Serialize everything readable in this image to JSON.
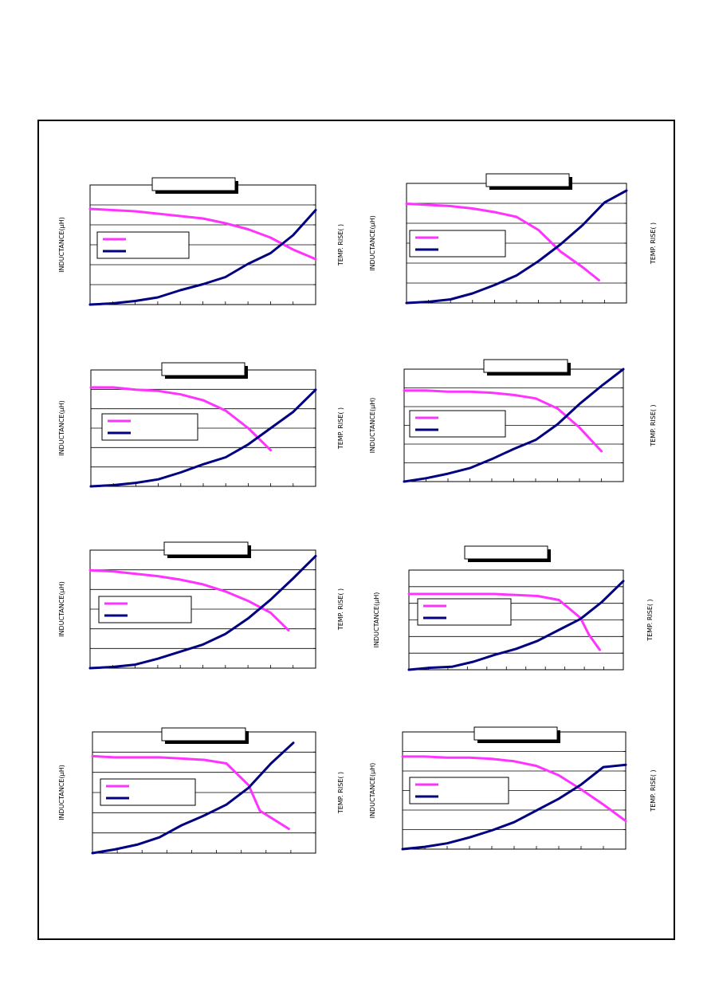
{
  "colors": {
    "inductance": "#ff33ff",
    "temp_rise": "#000080",
    "frame": "#000000",
    "grid": "#000000"
  },
  "chart_data": [
    {
      "type": "line",
      "ylabel": "INDUCTANCE(μH)",
      "y2label": "TEMP. RISE(   )",
      "title": "",
      "grid": true,
      "legend": "left",
      "x_ticks": 10,
      "y_gridlines": 6,
      "series": [
        {
          "key": "inductance",
          "values": [
            [
              0,
              0.8
            ],
            [
              1,
              0.79
            ],
            [
              2,
              0.78
            ],
            [
              3,
              0.76
            ],
            [
              4,
              0.74
            ],
            [
              5,
              0.72
            ],
            [
              6,
              0.68
            ],
            [
              7,
              0.63
            ],
            [
              8,
              0.56
            ],
            [
              9,
              0.46
            ],
            [
              10,
              0.38
            ]
          ]
        },
        {
          "key": "temp_rise",
          "values": [
            [
              0,
              0.0
            ],
            [
              1,
              0.01
            ],
            [
              2,
              0.03
            ],
            [
              3,
              0.06
            ],
            [
              4,
              0.12
            ],
            [
              5,
              0.17
            ],
            [
              6,
              0.23
            ],
            [
              7,
              0.34
            ],
            [
              8,
              0.43
            ],
            [
              9,
              0.58
            ],
            [
              10,
              0.79
            ]
          ]
        }
      ]
    },
    {
      "type": "line",
      "ylabel": "INDUCTANCE(μH)",
      "y2label": "TEMP. RISE(   )",
      "title": "",
      "grid": true,
      "legend": "left",
      "x_ticks": 10,
      "y_gridlines": 6,
      "series": [
        {
          "key": "inductance",
          "values": [
            [
              0,
              0.83
            ],
            [
              1,
              0.82
            ],
            [
              2,
              0.81
            ],
            [
              3,
              0.79
            ],
            [
              4,
              0.76
            ],
            [
              5,
              0.72
            ],
            [
              6,
              0.61
            ],
            [
              7,
              0.43
            ],
            [
              8,
              0.3
            ],
            [
              8.75,
              0.19
            ]
          ]
        },
        {
          "key": "temp_rise",
          "values": [
            [
              0,
              0.0
            ],
            [
              1,
              0.01
            ],
            [
              2,
              0.03
            ],
            [
              3,
              0.08
            ],
            [
              4,
              0.15
            ],
            [
              5,
              0.23
            ],
            [
              6,
              0.35
            ],
            [
              7,
              0.49
            ],
            [
              8,
              0.65
            ],
            [
              9,
              0.84
            ],
            [
              10,
              0.94
            ]
          ]
        }
      ]
    },
    {
      "type": "line",
      "ylabel": "INDUCTANCE(μH)",
      "y2label": "TEMP. RISE(   )",
      "title": "",
      "grid": true,
      "legend": "left",
      "x_ticks": 10,
      "y_gridlines": 6,
      "series": [
        {
          "key": "inductance",
          "values": [
            [
              0,
              0.85
            ],
            [
              1,
              0.85
            ],
            [
              2,
              0.83
            ],
            [
              3,
              0.82
            ],
            [
              4,
              0.79
            ],
            [
              5,
              0.74
            ],
            [
              6,
              0.65
            ],
            [
              7,
              0.5
            ],
            [
              8,
              0.31
            ]
          ]
        },
        {
          "key": "temp_rise",
          "values": [
            [
              0,
              0.0
            ],
            [
              1,
              0.01
            ],
            [
              2,
              0.03
            ],
            [
              3,
              0.06
            ],
            [
              4,
              0.12
            ],
            [
              5,
              0.19
            ],
            [
              6,
              0.25
            ],
            [
              7,
              0.36
            ],
            [
              8,
              0.5
            ],
            [
              9,
              0.64
            ],
            [
              10,
              0.83
            ]
          ]
        }
      ]
    },
    {
      "type": "line",
      "ylabel": "INDUCTANCE(μH)",
      "y2label": "TEMP. RISE(   )",
      "title": "",
      "grid": true,
      "legend": "left",
      "x_ticks": 10,
      "y_gridlines": 6,
      "series": [
        {
          "key": "inductance",
          "values": [
            [
              0,
              0.81
            ],
            [
              1,
              0.81
            ],
            [
              2,
              0.8
            ],
            [
              3,
              0.8
            ],
            [
              4,
              0.79
            ],
            [
              5,
              0.77
            ],
            [
              6,
              0.74
            ],
            [
              7,
              0.65
            ],
            [
              8,
              0.48
            ],
            [
              9,
              0.27
            ]
          ]
        },
        {
          "key": "temp_rise",
          "values": [
            [
              0,
              0.0
            ],
            [
              1,
              0.03
            ],
            [
              2,
              0.07
            ],
            [
              3,
              0.12
            ],
            [
              4,
              0.2
            ],
            [
              5,
              0.29
            ],
            [
              6,
              0.37
            ],
            [
              7,
              0.51
            ],
            [
              8,
              0.69
            ],
            [
              9,
              0.85
            ],
            [
              10,
              1.0
            ]
          ]
        }
      ]
    },
    {
      "type": "line",
      "ylabel": "INDUCTANCE(μH)",
      "y2label": "TEMP. RISE(   )",
      "title": "",
      "grid": true,
      "legend": "left",
      "x_ticks": 10,
      "y_gridlines": 6,
      "series": [
        {
          "key": "inductance",
          "values": [
            [
              0,
              0.83
            ],
            [
              1,
              0.82
            ],
            [
              2,
              0.8
            ],
            [
              3,
              0.78
            ],
            [
              4,
              0.75
            ],
            [
              5,
              0.71
            ],
            [
              6,
              0.65
            ],
            [
              7,
              0.57
            ],
            [
              8,
              0.47
            ],
            [
              8.8,
              0.32
            ]
          ]
        },
        {
          "key": "temp_rise",
          "values": [
            [
              0,
              0.0
            ],
            [
              1,
              0.01
            ],
            [
              2,
              0.03
            ],
            [
              3,
              0.08
            ],
            [
              4,
              0.14
            ],
            [
              5,
              0.2
            ],
            [
              6,
              0.29
            ],
            [
              7,
              0.42
            ],
            [
              8,
              0.58
            ],
            [
              9,
              0.76
            ],
            [
              10,
              0.95
            ]
          ]
        }
      ]
    },
    {
      "type": "line",
      "ylabel": "INDUCTANCE(μH)",
      "y2label": "TEMP. RISE(   )",
      "title": "",
      "grid": true,
      "legend": "left",
      "x_ticks": 11,
      "y_gridlines": 6,
      "series": [
        {
          "key": "inductance",
          "values": [
            [
              0,
              0.76
            ],
            [
              1,
              0.76
            ],
            [
              2,
              0.76
            ],
            [
              3,
              0.76
            ],
            [
              4,
              0.76
            ],
            [
              5,
              0.75
            ],
            [
              6,
              0.74
            ],
            [
              7,
              0.7
            ],
            [
              8,
              0.52
            ],
            [
              8.4,
              0.35
            ],
            [
              8.9,
              0.2
            ]
          ]
        },
        {
          "key": "temp_rise",
          "values": [
            [
              0,
              0.0
            ],
            [
              1,
              0.02
            ],
            [
              2,
              0.03
            ],
            [
              3,
              0.08
            ],
            [
              4,
              0.15
            ],
            [
              5,
              0.21
            ],
            [
              6,
              0.29
            ],
            [
              7,
              0.4
            ],
            [
              8,
              0.51
            ],
            [
              9,
              0.68
            ],
            [
              10,
              0.89
            ]
          ]
        }
      ]
    },
    {
      "type": "line",
      "ylabel": "INDUCTANCE(μH)",
      "y2label": "TEMP. RISE(   )",
      "title": "",
      "grid": true,
      "legend": "left",
      "x_ticks": 9,
      "y_gridlines": 6,
      "series": [
        {
          "key": "inductance",
          "values": [
            [
              0,
              0.8
            ],
            [
              1,
              0.79
            ],
            [
              2,
              0.79
            ],
            [
              3,
              0.79
            ],
            [
              4,
              0.78
            ],
            [
              5,
              0.77
            ],
            [
              6,
              0.74
            ],
            [
              7,
              0.56
            ],
            [
              7.5,
              0.35
            ],
            [
              8.8,
              0.2
            ]
          ]
        },
        {
          "key": "temp_rise",
          "values": [
            [
              0,
              0.0
            ],
            [
              1,
              0.03
            ],
            [
              2,
              0.07
            ],
            [
              3,
              0.13
            ],
            [
              4,
              0.23
            ],
            [
              5,
              0.31
            ],
            [
              6,
              0.4
            ],
            [
              7,
              0.54
            ],
            [
              8,
              0.74
            ],
            [
              9,
              0.91
            ]
          ]
        }
      ]
    },
    {
      "type": "line",
      "ylabel": "INDUCTANCE(μH)",
      "y2label": "TEMP. RISE(   )",
      "title": "",
      "grid": true,
      "legend": "left",
      "x_ticks": 10,
      "y_gridlines": 6,
      "series": [
        {
          "key": "inductance",
          "values": [
            [
              0,
              0.79
            ],
            [
              1,
              0.79
            ],
            [
              2,
              0.78
            ],
            [
              3,
              0.78
            ],
            [
              4,
              0.77
            ],
            [
              5,
              0.75
            ],
            [
              6,
              0.71
            ],
            [
              7,
              0.63
            ],
            [
              8,
              0.51
            ],
            [
              9,
              0.38
            ],
            [
              10,
              0.24
            ]
          ]
        },
        {
          "key": "temp_rise",
          "values": [
            [
              0,
              0.0
            ],
            [
              1,
              0.02
            ],
            [
              2,
              0.05
            ],
            [
              3,
              0.1
            ],
            [
              4,
              0.16
            ],
            [
              5,
              0.23
            ],
            [
              6,
              0.33
            ],
            [
              7,
              0.43
            ],
            [
              8,
              0.55
            ],
            [
              9,
              0.7
            ],
            [
              10,
              0.72
            ]
          ]
        }
      ]
    }
  ]
}
